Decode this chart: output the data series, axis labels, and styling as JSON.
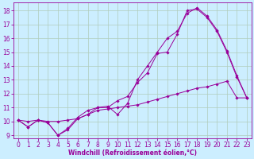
{
  "title": "",
  "xlabel": "Windchill (Refroidissement éolien,°C)",
  "ylabel": "",
  "background_color": "#cceeff",
  "line_color": "#990099",
  "xlim": [
    -0.5,
    23.5
  ],
  "ylim": [
    8.8,
    18.6
  ],
  "xticks": [
    0,
    1,
    2,
    3,
    4,
    5,
    6,
    7,
    8,
    9,
    10,
    11,
    12,
    13,
    14,
    15,
    16,
    17,
    18,
    19,
    20,
    21,
    22,
    23
  ],
  "yticks": [
    9,
    10,
    11,
    12,
    13,
    14,
    15,
    16,
    17,
    18
  ],
  "line1_x": [
    0,
    1,
    2,
    3,
    4,
    5,
    6,
    7,
    8,
    9,
    10,
    11,
    12,
    13,
    14,
    15,
    16,
    17,
    18,
    19,
    20,
    21,
    22,
    23
  ],
  "line1_y": [
    10.1,
    9.6,
    10.1,
    9.9,
    9.0,
    9.4,
    10.2,
    10.5,
    11.0,
    11.0,
    11.5,
    11.8,
    12.8,
    13.5,
    14.9,
    15.0,
    16.3,
    18.0,
    18.1,
    17.5,
    16.5,
    15.0,
    13.2,
    11.7
  ],
  "line2_x": [
    0,
    1,
    2,
    3,
    4,
    5,
    6,
    7,
    8,
    9,
    10,
    11,
    12,
    13,
    14,
    15,
    16,
    17,
    18,
    19,
    20,
    21,
    22,
    23
  ],
  "line2_y": [
    10.1,
    9.6,
    10.1,
    9.9,
    9.0,
    9.5,
    10.3,
    10.8,
    11.0,
    11.1,
    10.5,
    11.3,
    13.0,
    14.0,
    15.0,
    16.0,
    16.5,
    17.8,
    18.2,
    17.6,
    16.6,
    15.1,
    13.3,
    11.7
  ],
  "line3_x": [
    0,
    1,
    2,
    3,
    4,
    5,
    6,
    7,
    8,
    9,
    10,
    11,
    12,
    13,
    14,
    15,
    16,
    17,
    18,
    19,
    20,
    21,
    22,
    23
  ],
  "line3_y": [
    10.1,
    10.0,
    10.1,
    10.0,
    10.0,
    10.1,
    10.2,
    10.5,
    10.8,
    10.9,
    11.0,
    11.1,
    11.2,
    11.4,
    11.6,
    11.8,
    12.0,
    12.2,
    12.4,
    12.5,
    12.7,
    12.9,
    11.7,
    11.7
  ],
  "grid_color": "#b0ccbb",
  "marker": "D",
  "markersize": 1.8,
  "linewidth": 0.7,
  "tick_fontsize": 5.5,
  "xlabel_fontsize": 5.5
}
